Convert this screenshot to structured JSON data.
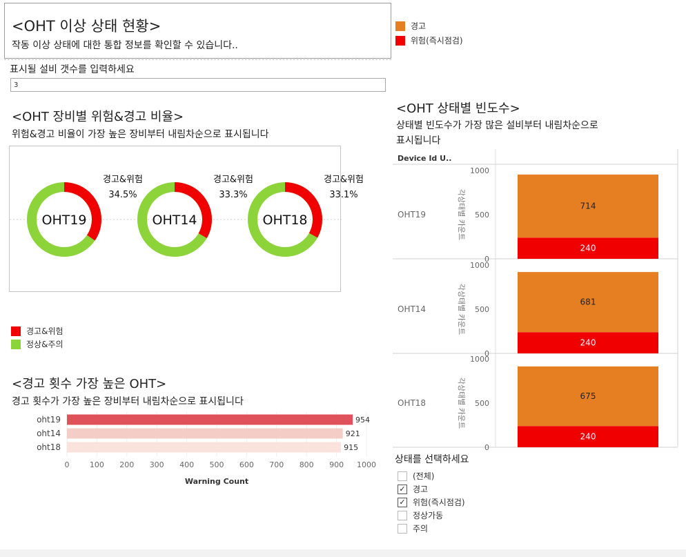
{
  "header": {
    "title": "<OHT 이상 상태 현황>",
    "subtitle": "작동 이상 상태에 대한 통합 정보를 확인할 수 있습니다.."
  },
  "top_legend": [
    {
      "label": "경고",
      "color": "#E67E22"
    },
    {
      "label": "위험(즉시점검)",
      "color": "#F00000"
    }
  ],
  "input": {
    "label": "표시될 설비 갯수를 입력하세요",
    "value": "3"
  },
  "donut_section": {
    "title": "<OHT 장비별 위험&경고 비율>",
    "subtitle": "위험&경고 비율이 가장 높은 장비부터 내림차순으로 표시됩니다"
  },
  "donut_legend": [
    {
      "label": "경고&위험",
      "color": "#F00000"
    },
    {
      "label": "정상&주의",
      "color": "#8DD33A"
    }
  ],
  "bar_section": {
    "title": "<경고 횟수 가장 높은 OHT>",
    "subtitle": "경고 횟수가 가장 높은 장비부터 내림차순으로 표시됩니다"
  },
  "stack_section": {
    "title": "<OHT 상태별 빈도수>",
    "subtitle_line1": "상태별 빈도수가 가장 많은 설비부터 내림차순으로",
    "subtitle_line2": "표시됩니다"
  },
  "filter": {
    "title": "상태를 선택하세요",
    "options": [
      {
        "label": "(전체)",
        "checked": false
      },
      {
        "label": "경고",
        "checked": true
      },
      {
        "label": "위험(즉시점검)",
        "checked": true
      },
      {
        "label": "정상가동",
        "checked": false
      },
      {
        "label": "주의",
        "checked": false
      }
    ]
  },
  "chart_data": [
    {
      "type": "pie",
      "chart": "donut",
      "items": [
        {
          "device": "OHT19",
          "label": "경고&위험",
          "percent": "34.5%",
          "value": 34.5
        },
        {
          "device": "OHT14",
          "label": "경고&위험",
          "percent": "33.3%",
          "value": 33.3
        },
        {
          "device": "OHT18",
          "label": "경고&위험",
          "percent": "33.1%",
          "value": 33.1
        }
      ],
      "colors": {
        "warning_danger": "#F00000",
        "normal_caution": "#8DD33A"
      }
    },
    {
      "type": "bar",
      "orientation": "horizontal",
      "categories": [
        "oht19",
        "oht14",
        "oht18"
      ],
      "values": [
        954,
        921,
        915
      ],
      "value_labels": [
        "954",
        "921",
        "915"
      ],
      "xlabel": "Warning Count",
      "xlim": [
        0,
        1000
      ],
      "xticks": [
        "0",
        "100",
        "200",
        "300",
        "400",
        "500",
        "600",
        "700",
        "800",
        "900",
        "1000"
      ],
      "colors": [
        "#E05259",
        "#F5CDC7",
        "#FBE3DD"
      ]
    },
    {
      "type": "bar",
      "stacked": true,
      "row_header": "Device Id U..",
      "ylabel": "각상태별 카운트",
      "ylim": [
        0,
        1000
      ],
      "yticks": [
        "0",
        "500",
        "1000"
      ],
      "categories": [
        "OHT19",
        "OHT14",
        "OHT18"
      ],
      "series": [
        {
          "name": "위험(즉시점검)",
          "color": "#F00000",
          "values": [
            240,
            240,
            240
          ],
          "labels": [
            "240",
            "240",
            "240"
          ]
        },
        {
          "name": "경고",
          "color": "#E67E22",
          "values": [
            714,
            681,
            675
          ],
          "labels": [
            "714",
            "681",
            "675"
          ]
        }
      ]
    }
  ]
}
